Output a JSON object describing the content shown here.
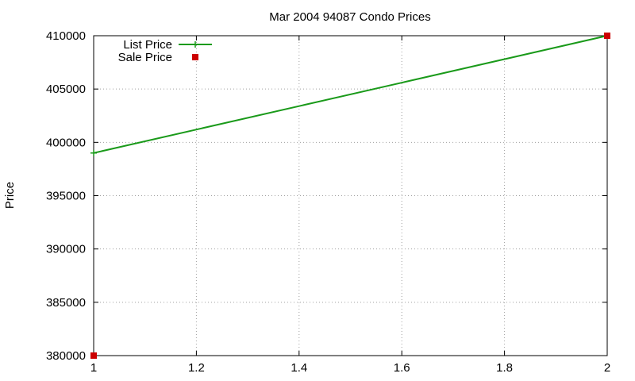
{
  "chart_data": {
    "type": "line",
    "title": "Mar 2004 94087 Condo Prices",
    "xlabel": "",
    "ylabel": "Price",
    "xlim": [
      1,
      2
    ],
    "ylim": [
      380000,
      410000
    ],
    "x_ticks": [
      1,
      1.2,
      1.4,
      1.6,
      1.8,
      2
    ],
    "x_tick_labels": [
      "1",
      "1.2",
      "1.4",
      "1.6",
      "1.8",
      "2"
    ],
    "y_ticks": [
      380000,
      385000,
      390000,
      395000,
      400000,
      405000,
      410000
    ],
    "y_tick_labels": [
      "380000",
      "385000",
      "390000",
      "395000",
      "400000",
      "405000",
      "410000"
    ],
    "grid": true,
    "legend_position": "top-left",
    "series": [
      {
        "name": "List Price",
        "style": "linespoints",
        "marker": "plus",
        "color": "#1a9a1a",
        "points": [
          {
            "x": 1,
            "y": 399000
          },
          {
            "x": 2,
            "y": 410000
          }
        ]
      },
      {
        "name": "Sale Price",
        "style": "points",
        "marker": "square",
        "color": "#cc0000",
        "points": [
          {
            "x": 1,
            "y": 380000
          },
          {
            "x": 2,
            "y": 410000
          }
        ]
      }
    ]
  }
}
